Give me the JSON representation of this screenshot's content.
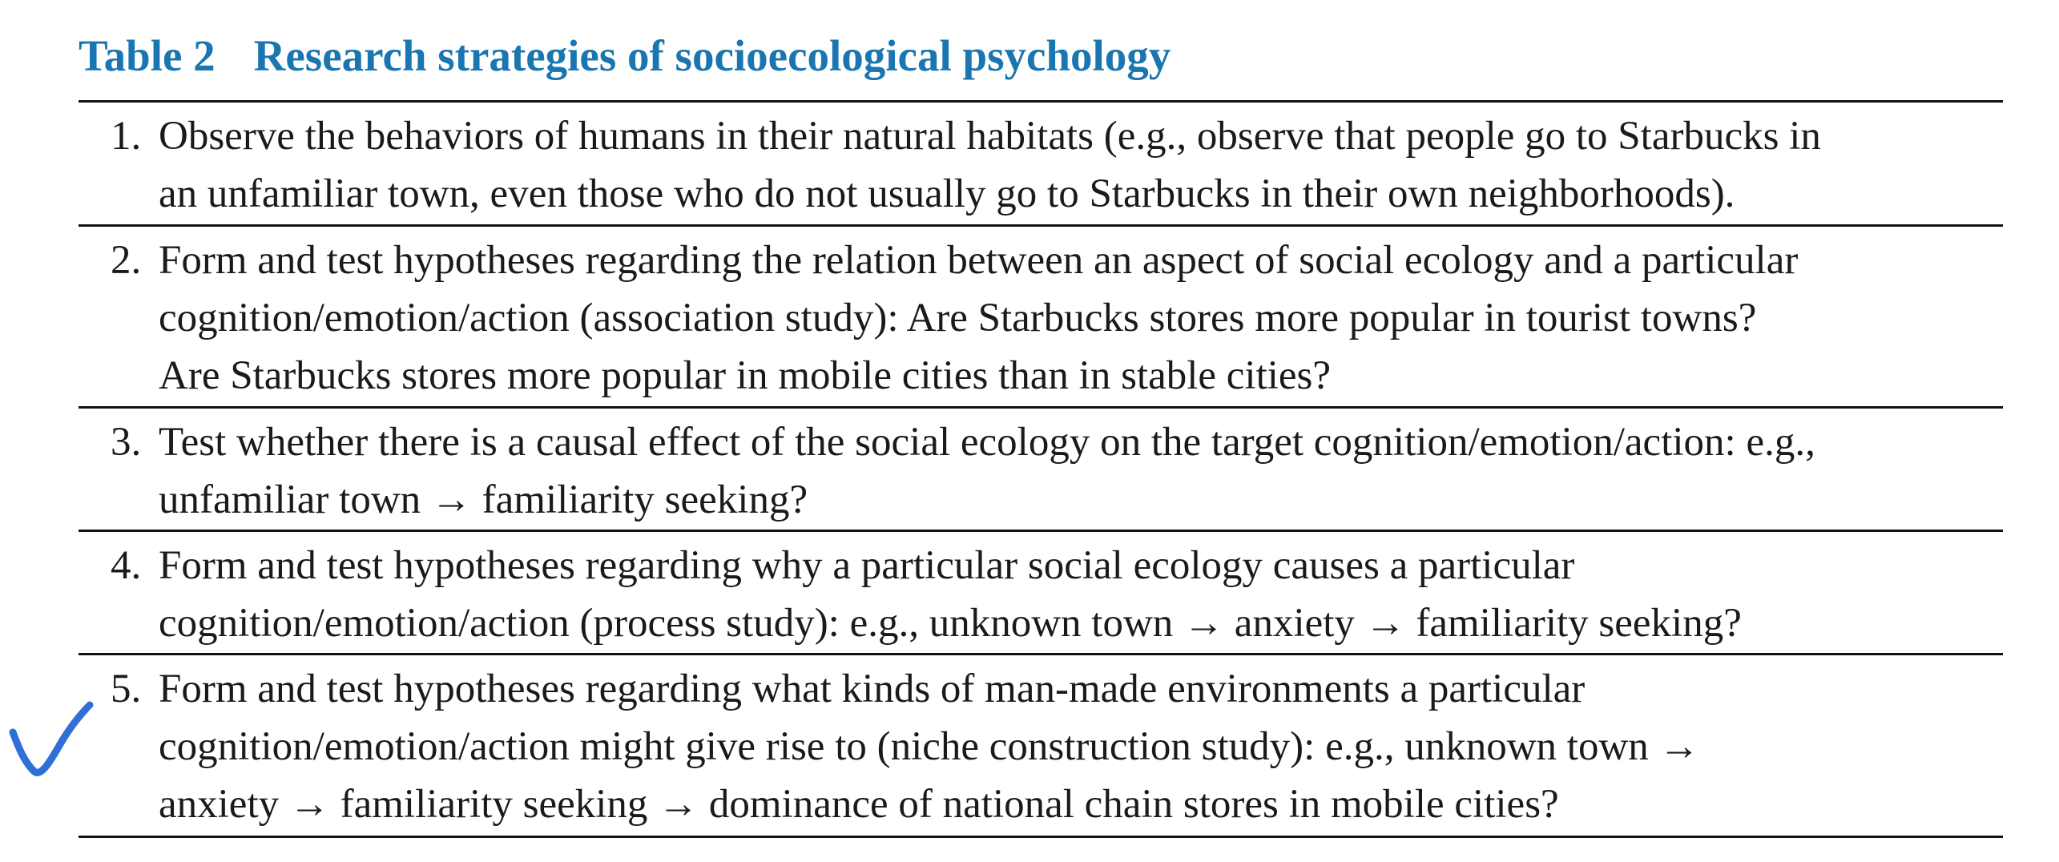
{
  "caption": {
    "label": "Table 2",
    "title": "Research strategies of socioecological psychology"
  },
  "rows": [
    {
      "number": "1.",
      "text": "Observe the behaviors of humans in their natural habitats (e.g., observe that people go to Starbucks in\nan unfamiliar town, even those who do not usually go to Starbucks in their own neighborhoods)."
    },
    {
      "number": "2.",
      "text": "Form and test hypotheses regarding the relation between an aspect of social ecology and a particular\ncognition/emotion/action (association study): Are Starbucks stores more popular in tourist towns?\nAre Starbucks stores more popular in mobile cities than in stable cities?"
    },
    {
      "number": "3.",
      "text": "Test whether there is a causal effect of the social ecology on the target cognition/emotion/action: e.g.,\nunfamiliar town → familiarity seeking?"
    },
    {
      "number": "4.",
      "text": "Form and test hypotheses regarding why a particular social ecology causes a particular\ncognition/emotion/action (process study): e.g., unknown town → anxiety → familiarity seeking?"
    },
    {
      "number": "5.",
      "text": "Form and test hypotheses regarding what kinds of man-made environments a particular\ncognition/emotion/action might give rise to (niche construction study): e.g., unknown town →\nanxiety → familiarity seeking → dominance of national chain stores in mobile cities?"
    }
  ],
  "annotation": {
    "icon": "checkmark-icon",
    "color": "#2f6fd6",
    "row": 5
  }
}
